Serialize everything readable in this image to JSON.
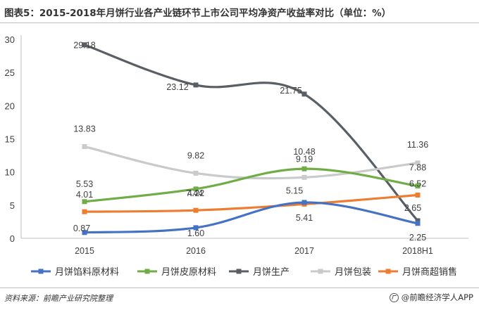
{
  "title": "图表5：2015-2018年月饼行业各产业链环节上市公司平均净资产收益率对比（单位：%）",
  "footer": {
    "source": "资料来源：前瞻产业研究院整理",
    "brand": "@前瞻经济学人APP"
  },
  "chart_data": {
    "type": "line",
    "categories": [
      "2015",
      "2016",
      "2017",
      "2018H1"
    ],
    "ylim": [
      0,
      30
    ],
    "yticks": [
      0,
      5,
      10,
      15,
      20,
      25,
      30
    ],
    "grid": false,
    "legend_position": "bottom",
    "series": [
      {
        "name": "月饼馅料原材料",
        "color": "#4472c4",
        "values": [
          0.87,
          1.6,
          5.41,
          2.25
        ],
        "labels": [
          "0.87",
          "1.60",
          "5.41",
          "2.25"
        ]
      },
      {
        "name": "月饼皮原材料",
        "color": "#70ad47",
        "values": [
          5.53,
          7.44,
          10.48,
          7.88
        ],
        "labels": [
          "5.53",
          "7.44",
          "10.48",
          "7.88"
        ]
      },
      {
        "name": "月饼生产",
        "color": "#5a5f66",
        "values": [
          29.18,
          23.12,
          21.75,
          2.65
        ],
        "labels": [
          "29.18",
          "23.12",
          "21.75",
          "2.65"
        ]
      },
      {
        "name": "月饼包装",
        "color": "#c9cacc",
        "values": [
          13.83,
          9.82,
          9.19,
          11.36
        ],
        "labels": [
          "13.83",
          "9.82",
          "9.19",
          "11.36"
        ]
      },
      {
        "name": "月饼商超销售",
        "color": "#ed7d31",
        "values": [
          4.01,
          4.22,
          5.15,
          6.52
        ],
        "labels": [
          "4.01",
          "4.22",
          "5.15",
          "6.52"
        ]
      }
    ]
  }
}
